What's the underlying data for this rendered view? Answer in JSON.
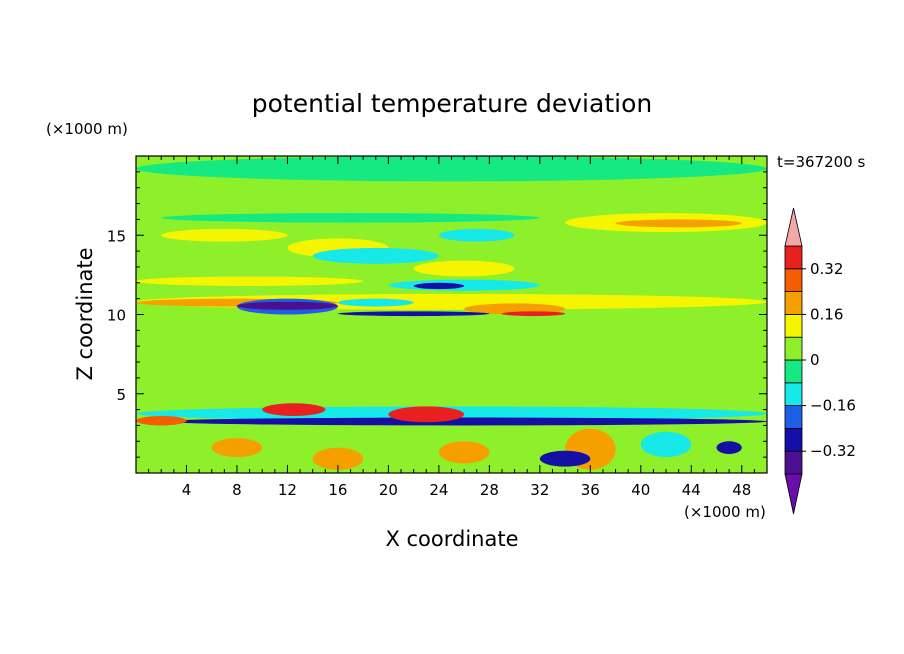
{
  "chart_data": {
    "type": "heatmap",
    "title": "potential temperature deviation",
    "xlabel": "X coordinate",
    "ylabel": "Z coordinate",
    "x_unit": "(×1000 m)",
    "y_unit": "(×1000 m)",
    "time_label": "t=367200 s",
    "xlim": [
      0,
      50
    ],
    "ylim": [
      0,
      20
    ],
    "x_ticks": [
      4,
      8,
      12,
      16,
      20,
      24,
      28,
      32,
      36,
      40,
      44,
      48
    ],
    "y_ticks": [
      5,
      10,
      15
    ],
    "colorbar": {
      "levels": [
        -0.4,
        -0.32,
        -0.24,
        -0.16,
        -0.08,
        0,
        0.08,
        0.16,
        0.24,
        0.32,
        0.4
      ],
      "colors": [
        "#4b0f8f",
        "#1410a6",
        "#1f5ee6",
        "#17e8e8",
        "#16e882",
        "#8ef02a",
        "#f5f500",
        "#f5a000",
        "#f55e00",
        "#e82020"
      ],
      "under_color": "#6a0daa",
      "over_color": "#f0a8a8",
      "tick_labels": [
        {
          "value": 0.32,
          "label": "0.32"
        },
        {
          "value": 0.16,
          "label": "0.16"
        },
        {
          "value": 0,
          "label": "0"
        },
        {
          "value": -0.16,
          "label": "−0.16"
        },
        {
          "value": -0.32,
          "label": "−0.32"
        }
      ]
    },
    "features": [
      {
        "x": [
          0,
          50
        ],
        "z": [
          0,
          20
        ],
        "value": 0.02
      },
      {
        "x": [
          0,
          50
        ],
        "z": [
          18.4,
          20
        ],
        "value": -0.03
      },
      {
        "x": [
          2,
          32
        ],
        "z": [
          15.8,
          16.4
        ],
        "value": -0.05
      },
      {
        "x": [
          34,
          50
        ],
        "z": [
          15.2,
          16.4
        ],
        "value": 0.12
      },
      {
        "x": [
          38,
          48
        ],
        "z": [
          15.5,
          16.0
        ],
        "value": 0.2
      },
      {
        "x": [
          2,
          12
        ],
        "z": [
          14.6,
          15.4
        ],
        "value": 0.12
      },
      {
        "x": [
          12,
          20
        ],
        "z": [
          13.6,
          14.8
        ],
        "value": 0.14
      },
      {
        "x": [
          24,
          30
        ],
        "z": [
          14.6,
          15.4
        ],
        "value": -0.14
      },
      {
        "x": [
          14,
          24
        ],
        "z": [
          13.2,
          14.2
        ],
        "value": -0.12
      },
      {
        "x": [
          22,
          30
        ],
        "z": [
          12.4,
          13.4
        ],
        "value": 0.12
      },
      {
        "x": [
          0,
          18
        ],
        "z": [
          11.8,
          12.4
        ],
        "value": 0.1
      },
      {
        "x": [
          20,
          32
        ],
        "z": [
          11.5,
          12.2
        ],
        "value": -0.14
      },
      {
        "x": [
          22,
          26
        ],
        "z": [
          11.6,
          12.0
        ],
        "value": -0.28
      },
      {
        "x": [
          0,
          50
        ],
        "z": [
          10.3,
          11.3
        ],
        "value": 0.14
      },
      {
        "x": [
          0,
          16
        ],
        "z": [
          10.5,
          11.0
        ],
        "value": 0.2
      },
      {
        "x": [
          8,
          16
        ],
        "z": [
          10.0,
          11.0
        ],
        "value": -0.2
      },
      {
        "x": [
          8,
          16
        ],
        "z": [
          10.3,
          10.8
        ],
        "value": -0.34
      },
      {
        "x": [
          16,
          22
        ],
        "z": [
          10.5,
          11.0
        ],
        "value": -0.12
      },
      {
        "x": [
          26,
          34
        ],
        "z": [
          10.0,
          10.7
        ],
        "value": 0.2
      },
      {
        "x": [
          29,
          34
        ],
        "z": [
          9.9,
          10.2
        ],
        "value": 0.34
      },
      {
        "x": [
          16,
          28
        ],
        "z": [
          9.9,
          10.2
        ],
        "value": -0.3
      },
      {
        "x": [
          0,
          50
        ],
        "z": [
          3.3,
          4.2
        ],
        "value": -0.14
      },
      {
        "x": [
          2,
          50
        ],
        "z": [
          3.0,
          3.5
        ],
        "value": -0.3
      },
      {
        "x": [
          10,
          15
        ],
        "z": [
          3.6,
          4.4
        ],
        "value": 0.38
      },
      {
        "x": [
          20,
          26
        ],
        "z": [
          3.2,
          4.2
        ],
        "value": 0.38
      },
      {
        "x": [
          0,
          4
        ],
        "z": [
          3.0,
          3.6
        ],
        "value": 0.3
      },
      {
        "x": [
          0,
          50
        ],
        "z": [
          0,
          3.0
        ],
        "value": 0.05
      },
      {
        "x": [
          6,
          10
        ],
        "z": [
          1.0,
          2.2
        ],
        "value": 0.2
      },
      {
        "x": [
          24,
          28
        ],
        "z": [
          0.6,
          2.0
        ],
        "value": 0.2
      },
      {
        "x": [
          14,
          18
        ],
        "z": [
          0.2,
          1.6
        ],
        "value": 0.18
      },
      {
        "x": [
          34,
          38
        ],
        "z": [
          0.2,
          2.8
        ],
        "value": 0.18
      },
      {
        "x": [
          32,
          36
        ],
        "z": [
          0.4,
          1.4
        ],
        "value": -0.3
      },
      {
        "x": [
          40,
          44
        ],
        "z": [
          1.0,
          2.6
        ],
        "value": -0.14
      },
      {
        "x": [
          46,
          48
        ],
        "z": [
          1.2,
          2.0
        ],
        "value": -0.28
      }
    ]
  }
}
